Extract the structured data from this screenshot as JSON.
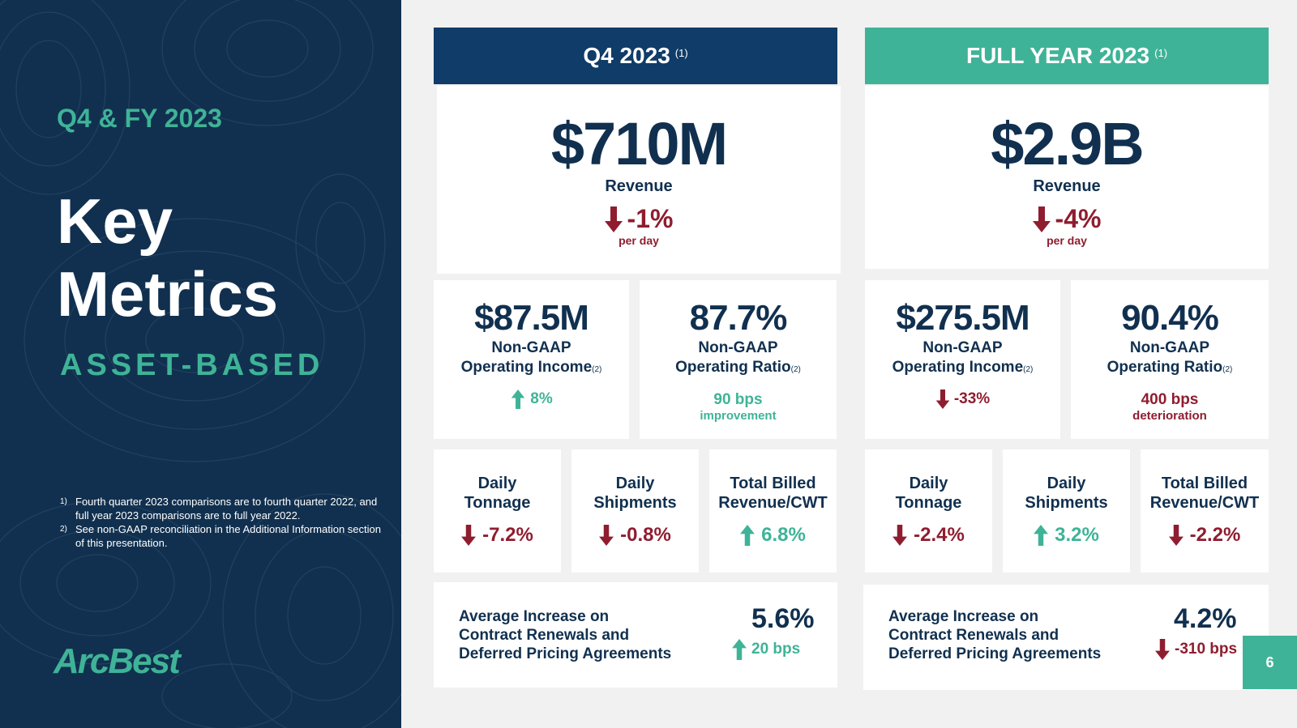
{
  "left": {
    "subtitle": "Q4 & FY 2023",
    "title_line1": "Key",
    "title_line2": "Metrics",
    "segment": "ASSET-BASED",
    "notes": [
      {
        "num": "1)",
        "text": "Fourth quarter 2023 comparisons are to fourth quarter 2022, and full year 2023 comparisons are to full year 2022."
      },
      {
        "num": "2)",
        "text": "See non-GAAP reconciliation in the Additional Information section of this presentation."
      }
    ],
    "logo": "ArcBest"
  },
  "q4": {
    "header": "Q4 2023",
    "header_note": "(1)",
    "revenue": {
      "value": "$710M",
      "label": "Revenue",
      "change": "-1%",
      "change_sub": "per day"
    },
    "op_income": {
      "value": "$87.5M",
      "label1": "Non-GAAP",
      "label2": "Operating Income",
      "note": "(2)",
      "change": "8%"
    },
    "op_ratio": {
      "value": "87.7%",
      "label1": "Non-GAAP",
      "label2": "Operating Ratio",
      "note": "(2)",
      "change": "90 bps",
      "change_sub": "improvement"
    },
    "tonnage": {
      "label1": "Daily",
      "label2": "Tonnage",
      "change": "-7.2%"
    },
    "shipments": {
      "label1": "Daily",
      "label2": "Shipments",
      "change": "-0.8%"
    },
    "billed": {
      "label1": "Total Billed",
      "label2": "Revenue/CWT",
      "change": "6.8%"
    },
    "avg": {
      "line1": "Average Increase on",
      "line2": "Contract Renewals and",
      "line3": "Deferred Pricing Agreements",
      "value": "5.6%",
      "change": "20 bps"
    }
  },
  "fy": {
    "header": "FULL YEAR 2023",
    "header_note": "(1)",
    "revenue": {
      "value": "$2.9B",
      "label": "Revenue",
      "change": "-4%",
      "change_sub": "per day"
    },
    "op_income": {
      "value": "$275.5M",
      "label1": "Non-GAAP",
      "label2": "Operating Income",
      "note": "(2)",
      "change": "-33%"
    },
    "op_ratio": {
      "value": "90.4%",
      "label1": "Non-GAAP",
      "label2": "Operating Ratio",
      "note": "(2)",
      "change": "400 bps",
      "change_sub": "deterioration"
    },
    "tonnage": {
      "label1": "Daily",
      "label2": "Tonnage",
      "change": "-2.4%"
    },
    "shipments": {
      "label1": "Daily",
      "label2": "Shipments",
      "change": "3.2%"
    },
    "billed": {
      "label1": "Total Billed",
      "label2": "Revenue/CWT",
      "change": "-2.2%"
    },
    "avg": {
      "line1": "Average Increase on",
      "line2": "Contract Renewals and",
      "line3": "Deferred Pricing Agreements",
      "value": "4.2%",
      "change": "-310 bps"
    }
  },
  "page_number": "6",
  "colors": {
    "navy": "#11304f",
    "header_navy": "#0f3c68",
    "teal": "#3fb397",
    "red": "#8f1d2f"
  }
}
